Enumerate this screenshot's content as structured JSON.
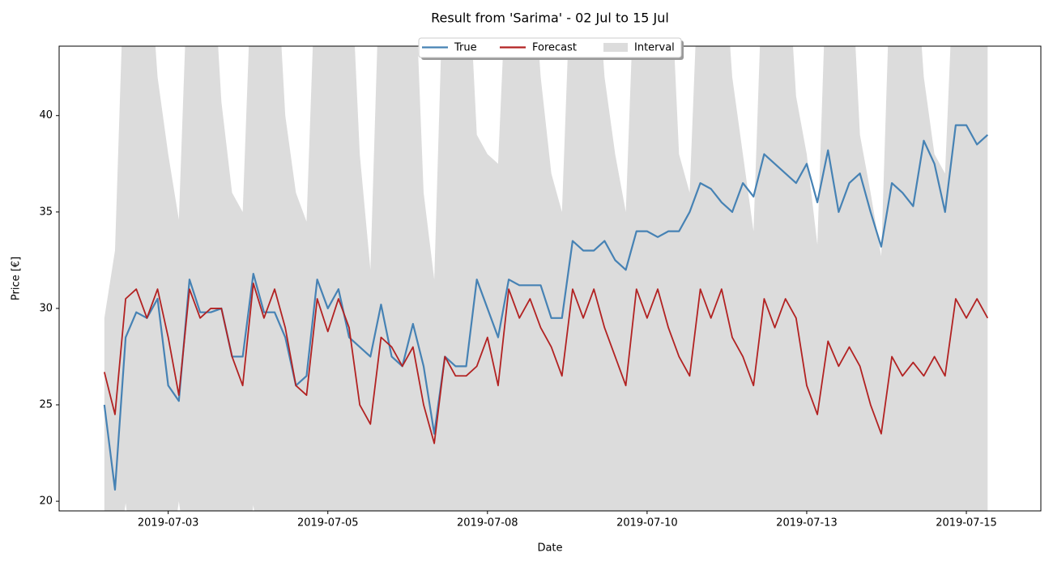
{
  "chart_data": {
    "type": "line",
    "title": "Result from 'Sarima' - 02 Jul to 15 Jul",
    "x_label": "Date",
    "y_label": "Price [€]",
    "x": [
      "2019-07-02 00:00",
      "2019-07-02 04:00",
      "2019-07-02 08:00",
      "2019-07-02 12:00",
      "2019-07-02 16:00",
      "2019-07-02 20:00",
      "2019-07-03 00:00",
      "2019-07-03 04:00",
      "2019-07-03 08:00",
      "2019-07-03 12:00",
      "2019-07-03 16:00",
      "2019-07-03 20:00",
      "2019-07-04 00:00",
      "2019-07-04 04:00",
      "2019-07-04 08:00",
      "2019-07-04 12:00",
      "2019-07-04 16:00",
      "2019-07-04 20:00",
      "2019-07-05 00:00",
      "2019-07-05 04:00",
      "2019-07-05 08:00",
      "2019-07-05 12:00",
      "2019-07-05 16:00",
      "2019-07-05 20:00",
      "2019-07-06 00:00",
      "2019-07-06 04:00",
      "2019-07-06 08:00",
      "2019-07-06 12:00",
      "2019-07-06 16:00",
      "2019-07-06 20:00",
      "2019-07-07 00:00",
      "2019-07-07 04:00",
      "2019-07-07 08:00",
      "2019-07-07 12:00",
      "2019-07-07 16:00",
      "2019-07-07 20:00",
      "2019-07-08 00:00",
      "2019-07-08 04:00",
      "2019-07-08 08:00",
      "2019-07-08 12:00",
      "2019-07-08 16:00",
      "2019-07-08 20:00",
      "2019-07-09 00:00",
      "2019-07-09 04:00",
      "2019-07-09 08:00",
      "2019-07-09 12:00",
      "2019-07-09 16:00",
      "2019-07-09 20:00",
      "2019-07-10 00:00",
      "2019-07-10 04:00",
      "2019-07-10 08:00",
      "2019-07-10 12:00",
      "2019-07-10 16:00",
      "2019-07-10 20:00",
      "2019-07-11 00:00",
      "2019-07-11 04:00",
      "2019-07-11 08:00",
      "2019-07-11 12:00",
      "2019-07-11 16:00",
      "2019-07-11 20:00",
      "2019-07-12 00:00",
      "2019-07-12 04:00",
      "2019-07-12 08:00",
      "2019-07-12 12:00",
      "2019-07-12 16:00",
      "2019-07-12 20:00",
      "2019-07-13 00:00",
      "2019-07-13 04:00",
      "2019-07-13 08:00",
      "2019-07-13 12:00",
      "2019-07-13 16:00",
      "2019-07-13 20:00",
      "2019-07-14 00:00",
      "2019-07-14 04:00",
      "2019-07-14 08:00",
      "2019-07-14 12:00",
      "2019-07-14 16:00",
      "2019-07-14 20:00",
      "2019-07-15 00:00",
      "2019-07-15 04:00",
      "2019-07-15 08:00",
      "2019-07-15 12:00",
      "2019-07-15 16:00",
      "2019-07-15 20:00"
    ],
    "series": [
      {
        "name": "True",
        "color": "#4682b4",
        "values": [
          25,
          20.6,
          28.5,
          29.8,
          29.5,
          30.5,
          26,
          25.2,
          31.5,
          29.8,
          29.8,
          30,
          27.5,
          27.5,
          31.8,
          29.8,
          29.8,
          28.5,
          26,
          26.5,
          31.5,
          30,
          31,
          28.5,
          28,
          27.5,
          30.2,
          27.5,
          27,
          29.2,
          27,
          23.5,
          27.5,
          27,
          27,
          31.5,
          30,
          28.5,
          31.5,
          31.2,
          31.2,
          31.2,
          29.5,
          29.5,
          33.5,
          33,
          33,
          33.5,
          32.5,
          32,
          34,
          34,
          33.7,
          34,
          34,
          35,
          36.5,
          36.2,
          35.5,
          35,
          36.5,
          35.8,
          38,
          37.5,
          37,
          36.5,
          37.5,
          35.5,
          38.2,
          35,
          36.5,
          37,
          35,
          33.2,
          36.5,
          36,
          35.3,
          38.7,
          37.5,
          35,
          39.5,
          39.5,
          38.5,
          39
        ]
      },
      {
        "name": "Forecast",
        "color": "#b22222",
        "values": [
          26.7,
          24.5,
          30.5,
          31,
          29.5,
          31,
          28.5,
          25.5,
          31,
          29.5,
          30,
          30,
          27.5,
          26,
          31.3,
          29.5,
          31,
          29,
          26,
          25.5,
          30.5,
          28.8,
          30.5,
          29,
          25,
          24,
          28.5,
          28,
          27,
          28,
          25,
          23,
          27.5,
          26.5,
          26.5,
          27,
          28.5,
          26,
          31,
          29.5,
          30.5,
          29,
          28,
          26.5,
          31,
          29.5,
          31,
          29,
          27.5,
          26,
          31,
          29.5,
          31,
          29,
          27.5,
          26.5,
          31,
          29.5,
          31,
          28.5,
          27.5,
          26,
          30.5,
          29,
          30.5,
          29.5,
          26,
          24.5,
          28.3,
          27,
          28,
          27,
          25,
          23.5,
          27.5,
          26.5,
          27.2,
          26.5,
          27.5,
          26.5,
          30.5,
          29.5,
          30.5,
          29.5
        ]
      },
      {
        "name": "Interval",
        "color": "#dcdcdc",
        "band": true,
        "upper": [
          29.5,
          33,
          50,
          50,
          50,
          42,
          38,
          34.6,
          50,
          50,
          50,
          40.7,
          36,
          35,
          50,
          50,
          50,
          40,
          36,
          34.5,
          50,
          50,
          50,
          50,
          38,
          32,
          50,
          50,
          50,
          50,
          36,
          31.5,
          50,
          50,
          50,
          39,
          38,
          37.5,
          50,
          50,
          50,
          42,
          37,
          35,
          50,
          50,
          50,
          42,
          38,
          35,
          50,
          50,
          50,
          50,
          38,
          36,
          50,
          50,
          50,
          42,
          38,
          34,
          50,
          50,
          50,
          41,
          38,
          33.3,
          50,
          50,
          50,
          39,
          36,
          32.7,
          50,
          50,
          50,
          42,
          38,
          37,
          50,
          50,
          50,
          50
        ],
        "lower": [
          16,
          16,
          19.9,
          16,
          16,
          16,
          16,
          20,
          16,
          16,
          16,
          16,
          16,
          16,
          19.8,
          16,
          16,
          16,
          16,
          16,
          16,
          16,
          16,
          16,
          16,
          16,
          16,
          16,
          16,
          16,
          16,
          16,
          16,
          16,
          16,
          16,
          16,
          16,
          16,
          16,
          16,
          16,
          16,
          16,
          16,
          16,
          16,
          16,
          16,
          16,
          16,
          16,
          16,
          16,
          16,
          16,
          16,
          16,
          16,
          16,
          16,
          16,
          16,
          16,
          16,
          16,
          16,
          16,
          16,
          16,
          16,
          16,
          16,
          16,
          16,
          16,
          16,
          16,
          16,
          16,
          16,
          16,
          16,
          16
        ]
      }
    ],
    "xlim": [
      "2019-07-01 07:00",
      "2019-07-16 16:00"
    ],
    "xticks": [
      {
        "value": "2019-07-03 00:00",
        "label": "2019-07-03"
      },
      {
        "value": "2019-07-05 12:00",
        "label": "2019-07-05"
      },
      {
        "value": "2019-07-08 00:00",
        "label": "2019-07-08"
      },
      {
        "value": "2019-07-10 12:00",
        "label": "2019-07-10"
      },
      {
        "value": "2019-07-13 00:00",
        "label": "2019-07-13"
      },
      {
        "value": "2019-07-15 12:00",
        "label": "2019-07-15"
      }
    ],
    "ylim": [
      19.5,
      43.6
    ],
    "yticks": [
      20,
      25,
      30,
      35,
      40
    ],
    "legend": "upper center"
  }
}
